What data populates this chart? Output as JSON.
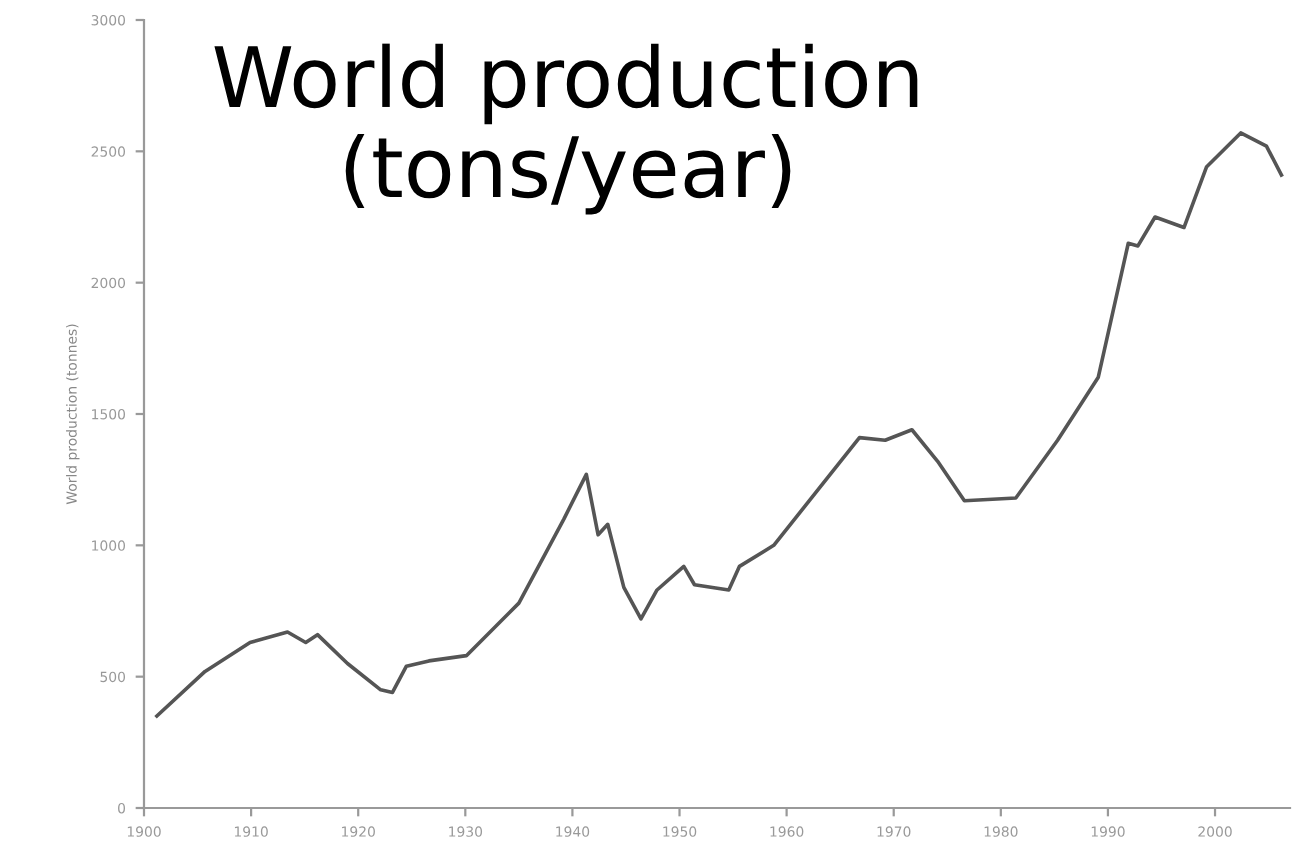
{
  "chart_data": {
    "type": "line",
    "title": "World production\n(tons/year)",
    "ylabel": "World production (tonnes)",
    "x": [
      1901.2,
      1905.7,
      1909.9,
      1913.4,
      1915.1,
      1916.2,
      1919,
      1922.1,
      1923.2,
      1924.5,
      1926.6,
      1930.1,
      1935,
      1939.2,
      1941.3,
      1942.4,
      1943.3,
      1944.8,
      1946.4,
      1947.9,
      1950.4,
      1951.4,
      1954.6,
      1955.6,
      1958.8,
      1962.9,
      1966.8,
      1969.2,
      1971.7,
      1974.1,
      1976.6,
      1981.4,
      1985.3,
      1989.1,
      1991.9,
      1992.8,
      1994.4,
      1997.1,
      1999.2,
      2002.4,
      2004.8,
      2006.2
    ],
    "series": [
      {
        "color": "#555555",
        "values": [
          350,
          520,
          630,
          670,
          630,
          660,
          550,
          450,
          440,
          540,
          560,
          580,
          780,
          1100,
          1270,
          1040,
          1080,
          840,
          720,
          830,
          920,
          850,
          830,
          920,
          1000,
          1210,
          1410,
          1400,
          1440,
          1320,
          1170,
          1180,
          1400,
          1640,
          2150,
          2140,
          2250,
          2210,
          2440,
          2570,
          2520,
          2410
        ]
      }
    ],
    "xlim": [
      1900,
      2007
    ],
    "xticks": [
      1900,
      1910,
      1920,
      1930,
      1940,
      1950,
      1960,
      1970,
      1980,
      1990,
      2000
    ],
    "ylim": [
      0,
      3000
    ],
    "yticks": [
      0,
      500,
      1000,
      1500,
      2000,
      2500,
      3000
    ],
    "grid": false,
    "line_style": "solid",
    "marker": "none"
  }
}
